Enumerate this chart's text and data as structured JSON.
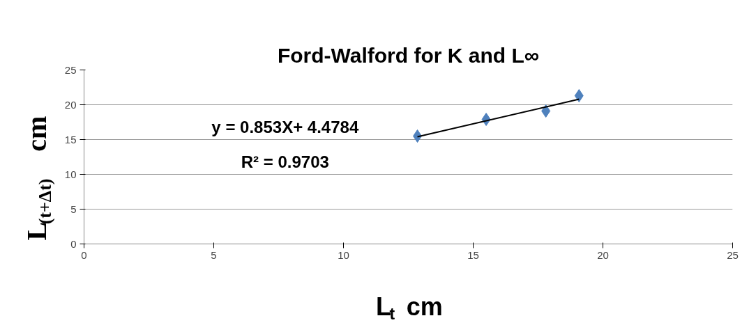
{
  "chart_data": {
    "type": "scatter",
    "title": "Ford-Walford for K and L∞",
    "xlabel": "L$_{t}$ cm",
    "ylabel": "L$_{(t+Δt)}$ cm",
    "series": [
      {
        "color": "#4f81bd",
        "marker": "diamond",
        "x": [
          12.85,
          15.5,
          17.8,
          19.08
        ],
        "values": [
          15.5,
          17.9,
          19.1,
          21.3
        ]
      },
      {
        "type": "line",
        "color": "#000000",
        "x": [
          12.85,
          19.08
        ],
        "values": [
          15.4,
          20.8
        ]
      }
    ],
    "annotations": [
      "y = 0.853X+ 4.4784",
      "R² = 0.9703"
    ],
    "xlim": [
      0,
      25
    ],
    "xticks": [
      0,
      5,
      10,
      15,
      20,
      25
    ],
    "ylim": [
      0,
      25
    ],
    "yticks": [
      0,
      5,
      10,
      15,
      20,
      25
    ],
    "grid": "y"
  }
}
